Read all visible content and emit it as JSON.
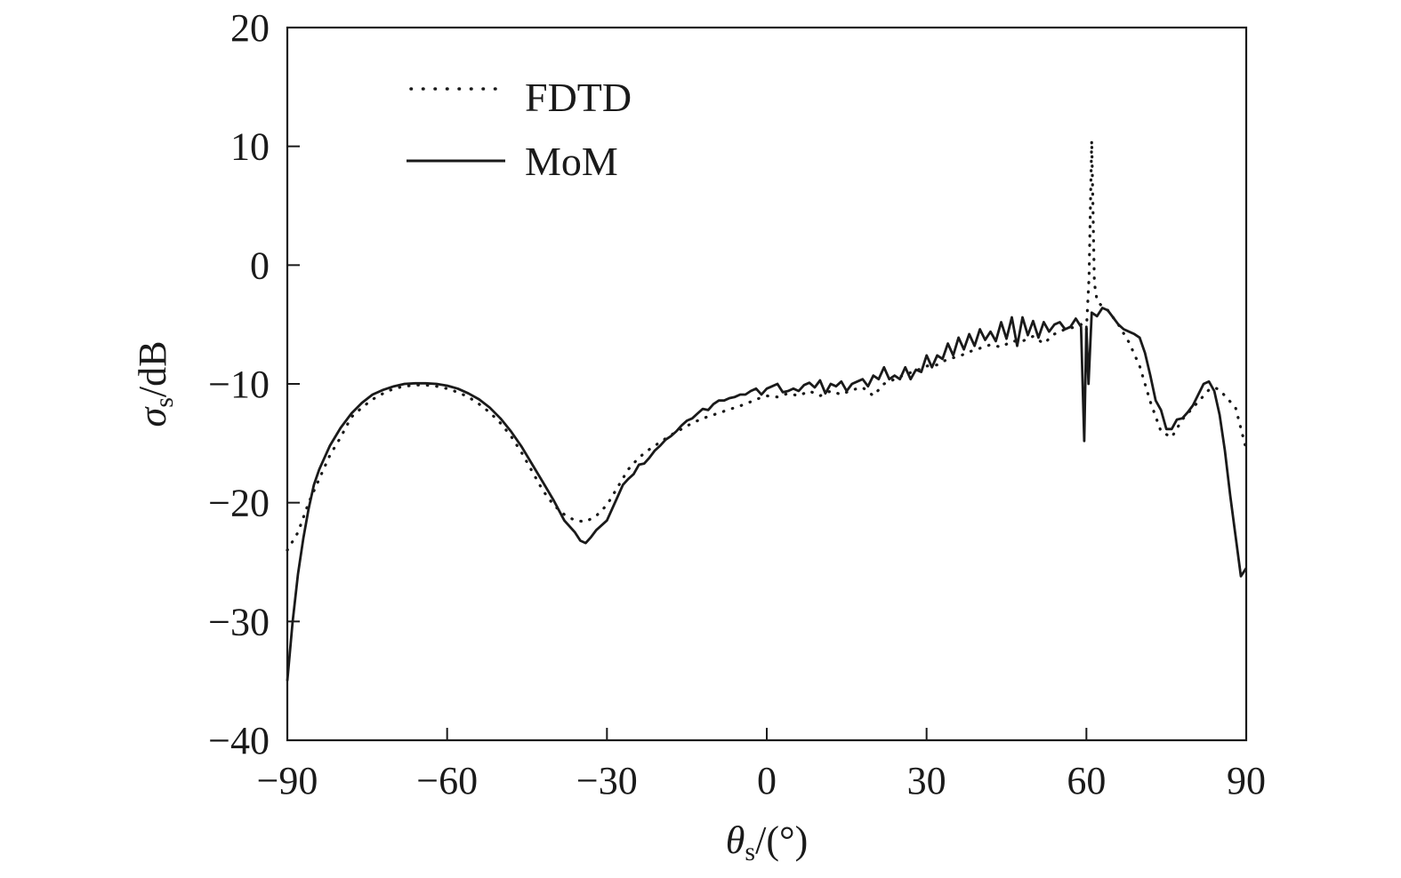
{
  "chart_data": {
    "type": "line",
    "title": "",
    "xlabel": {
      "symbol": "θ",
      "sub": "s",
      "unit": "/(°)"
    },
    "ylabel": {
      "symbol": "σ",
      "sub": "s",
      "unit": "/dB"
    },
    "xlim": [
      -90,
      90
    ],
    "ylim": [
      -40,
      20
    ],
    "xticks": [
      -90,
      -60,
      -30,
      0,
      30,
      60,
      90
    ],
    "yticks": [
      -40,
      -30,
      -20,
      -10,
      0,
      10,
      20
    ],
    "xtick_labels": [
      "−90",
      "−60",
      "−30",
      "0",
      "30",
      "60",
      "90"
    ],
    "ytick_labels": [
      "−40",
      "−30",
      "−20",
      "−10",
      "0",
      "10",
      "20"
    ],
    "grid": false,
    "legend_position": "top-left",
    "line_color": "#1a1a1a",
    "series": [
      {
        "name": "FDTD",
        "style": "dotted",
        "x": [
          -90,
          -88,
          -86,
          -84,
          -82,
          -80,
          -78,
          -76,
          -74,
          -72,
          -70,
          -68,
          -66,
          -64,
          -62,
          -60,
          -58,
          -56,
          -54,
          -52,
          -50,
          -48,
          -46,
          -44,
          -42,
          -40,
          -38,
          -36,
          -34,
          -32,
          -30,
          -28,
          -26,
          -24,
          -22,
          -20,
          -18,
          -16,
          -14,
          -12,
          -10,
          -8,
          -6,
          -4,
          -2,
          0,
          2,
          4,
          6,
          8,
          10,
          12,
          14,
          16,
          18,
          20,
          22,
          24,
          26,
          28,
          30,
          32,
          34,
          36,
          38,
          40,
          42,
          44,
          46,
          48,
          50,
          52,
          54,
          56,
          58,
          59,
          60,
          60.5,
          61,
          61.5,
          62,
          63,
          64,
          66,
          68,
          70,
          72,
          74,
          76,
          78,
          80,
          82,
          83,
          84,
          85,
          86,
          88,
          90
        ],
        "y": [
          -24,
          -22.5,
          -20,
          -18,
          -16,
          -14.5,
          -12.8,
          -12,
          -11.3,
          -10.8,
          -10.4,
          -10.2,
          -10.1,
          -10.1,
          -10.2,
          -10.4,
          -10.7,
          -11.1,
          -11.7,
          -12.4,
          -13.3,
          -14.4,
          -15.8,
          -17.4,
          -19,
          -20.2,
          -21,
          -21.5,
          -21.6,
          -21.1,
          -20.2,
          -18.7,
          -17.2,
          -16.2,
          -15.5,
          -14.9,
          -14.3,
          -13.8,
          -13.3,
          -12.9,
          -12.6,
          -12.3,
          -12,
          -11.7,
          -11.3,
          -11,
          -11.1,
          -10.8,
          -11,
          -10.6,
          -11,
          -10.6,
          -10.9,
          -10.5,
          -10.3,
          -11,
          -10,
          -9.6,
          -9.2,
          -8.9,
          -8.5,
          -8.4,
          -7.9,
          -7.7,
          -7.3,
          -7,
          -6.7,
          -6.9,
          -6.4,
          -6.4,
          -6,
          -6.6,
          -5.8,
          -5.4,
          -5.2,
          -5,
          -5.5,
          -1,
          10.5,
          -1.5,
          -3,
          -3.5,
          -3.8,
          -5,
          -6.5,
          -8.5,
          -11.5,
          -14,
          -14.5,
          -13,
          -12,
          -11,
          -10.5,
          -10.3,
          -10.5,
          -11,
          -12,
          -15.5
        ]
      },
      {
        "name": "MoM",
        "style": "solid",
        "x": [
          -90,
          -89,
          -88,
          -87,
          -86,
          -85,
          -84,
          -82,
          -80,
          -78,
          -76,
          -74,
          -72,
          -70,
          -68,
          -66,
          -64,
          -62,
          -60,
          -58,
          -56,
          -54,
          -52,
          -50,
          -48,
          -46,
          -44,
          -42,
          -40,
          -38,
          -36,
          -35,
          -34,
          -33,
          -32,
          -30,
          -28,
          -27,
          -26,
          -25,
          -24,
          -23,
          -22,
          -21,
          -20,
          -19,
          -18,
          -17,
          -16,
          -15,
          -14,
          -13,
          -12,
          -11,
          -10,
          -9,
          -8,
          -7,
          -6,
          -5,
          -4,
          -3,
          -2,
          -1,
          0,
          1,
          2,
          3,
          4,
          5,
          6,
          7,
          8,
          9,
          10,
          11,
          12,
          13,
          14,
          15,
          16,
          17,
          18,
          19,
          20,
          21,
          22,
          23,
          24,
          25,
          26,
          27,
          28,
          29,
          30,
          31,
          32,
          33,
          34,
          35,
          36,
          37,
          38,
          39,
          40,
          41,
          42,
          43,
          44,
          45,
          46,
          47,
          48,
          49,
          50,
          51,
          52,
          53,
          54,
          55,
          56,
          57,
          58,
          59,
          59.6,
          60,
          60.4,
          61,
          62,
          63,
          64,
          65,
          66,
          67,
          68,
          69,
          70,
          71,
          72,
          73,
          74,
          75,
          76,
          77,
          78,
          79,
          80,
          81,
          82,
          83,
          84,
          85,
          86,
          87,
          88,
          89,
          90
        ],
        "y": [
          -35,
          -30,
          -26,
          -23,
          -20.5,
          -18.5,
          -17.2,
          -15.2,
          -13.7,
          -12.5,
          -11.6,
          -10.9,
          -10.5,
          -10.2,
          -10,
          -9.95,
          -9.95,
          -10,
          -10.15,
          -10.4,
          -10.8,
          -11.3,
          -12,
          -12.9,
          -14,
          -15.3,
          -16.8,
          -18.3,
          -19.8,
          -21.5,
          -22.5,
          -23.2,
          -23.4,
          -22.9,
          -22.3,
          -21.5,
          -19.5,
          -18.5,
          -18,
          -17.6,
          -16.8,
          -16.7,
          -16.2,
          -15.6,
          -15.2,
          -14.7,
          -14.4,
          -14,
          -13.5,
          -13.1,
          -12.9,
          -12.5,
          -12.1,
          -12.2,
          -11.7,
          -11.4,
          -11.4,
          -11.2,
          -11.1,
          -10.9,
          -10.9,
          -10.6,
          -10.4,
          -10.9,
          -10.4,
          -10.2,
          -10,
          -10.7,
          -10.6,
          -10.4,
          -10.6,
          -10.1,
          -9.9,
          -10.3,
          -9.7,
          -10.8,
          -10,
          -10.2,
          -9.8,
          -10.6,
          -10,
          -9.8,
          -9.6,
          -10.2,
          -9.3,
          -9.6,
          -8.6,
          -9.6,
          -9.3,
          -9.6,
          -8.6,
          -9.6,
          -8.8,
          -9,
          -7.6,
          -8.6,
          -7.6,
          -7.9,
          -6.6,
          -7.6,
          -6.1,
          -7.1,
          -5.8,
          -6.8,
          -5.4,
          -6.3,
          -5.6,
          -6.4,
          -4.8,
          -6.2,
          -4.4,
          -6.8,
          -4.4,
          -5.9,
          -4.7,
          -6.1,
          -4.8,
          -5.6,
          -5,
          -4.8,
          -5.4,
          -5.2,
          -4.5,
          -5.2,
          -14.8,
          -5.2,
          -10,
          -4,
          -4.3,
          -3.6,
          -3.8,
          -4.4,
          -5,
          -5.4,
          -5.6,
          -5.8,
          -6.1,
          -7.4,
          -9.3,
          -11.4,
          -12.2,
          -13.8,
          -13.8,
          -13,
          -12.9,
          -12.4,
          -11.8,
          -10.9,
          -10,
          -9.8,
          -10.6,
          -12.6,
          -15.6,
          -19.4,
          -22.8,
          -26.2,
          -25.5
        ]
      }
    ]
  }
}
